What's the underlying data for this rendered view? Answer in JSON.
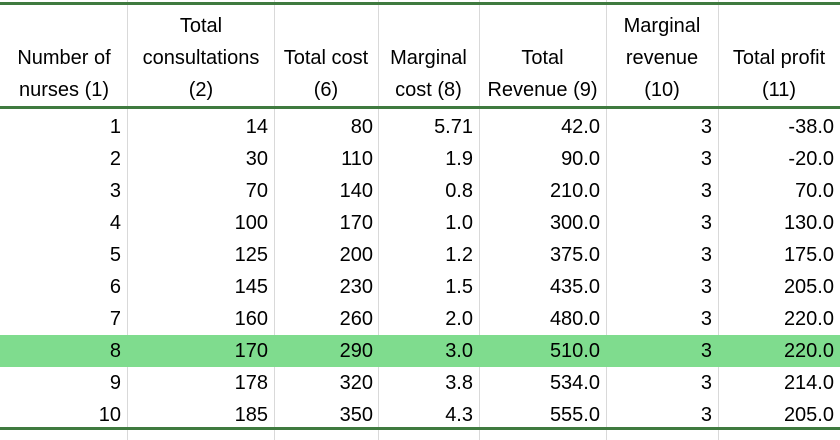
{
  "columns": [
    {
      "key": "nurses",
      "header": [
        "Number of",
        "nurses (1)"
      ]
    },
    {
      "key": "consultations",
      "header": [
        "Total",
        "consultations",
        "(2)"
      ]
    },
    {
      "key": "total_cost",
      "header": [
        "Total cost",
        "(6)"
      ]
    },
    {
      "key": "marginal_cost",
      "header": [
        "Marginal",
        "cost (8)"
      ]
    },
    {
      "key": "total_revenue",
      "header": [
        "Total",
        "Revenue (9)"
      ]
    },
    {
      "key": "marginal_revenue",
      "header": [
        "Marginal",
        "revenue",
        "(10)"
      ]
    },
    {
      "key": "total_profit",
      "header": [
        "Total profit",
        "(11)"
      ]
    }
  ],
  "rows": [
    [
      "1",
      "14",
      "80",
      "5.71",
      "42.0",
      "3",
      "-38.0"
    ],
    [
      "2",
      "30",
      "110",
      "1.9",
      "90.0",
      "3",
      "-20.0"
    ],
    [
      "3",
      "70",
      "140",
      "0.8",
      "210.0",
      "3",
      "70.0"
    ],
    [
      "4",
      "100",
      "170",
      "1.0",
      "300.0",
      "3",
      "130.0"
    ],
    [
      "5",
      "125",
      "200",
      "1.2",
      "375.0",
      "3",
      "175.0"
    ],
    [
      "6",
      "145",
      "230",
      "1.5",
      "435.0",
      "3",
      "205.0"
    ],
    [
      "7",
      "160",
      "260",
      "2.0",
      "480.0",
      "3",
      "220.0"
    ],
    [
      "8",
      "170",
      "290",
      "3.0",
      "510.0",
      "3",
      "220.0"
    ],
    [
      "9",
      "178",
      "320",
      "3.8",
      "534.0",
      "3",
      "214.0"
    ],
    [
      "10",
      "185",
      "350",
      "4.3",
      "555.0",
      "3",
      "205.0"
    ]
  ],
  "highlighted_row_index": 7,
  "colors": {
    "highlight": "#7fdc8e",
    "rule": "#3f7a3f",
    "gridline": "#d9d9d9"
  }
}
